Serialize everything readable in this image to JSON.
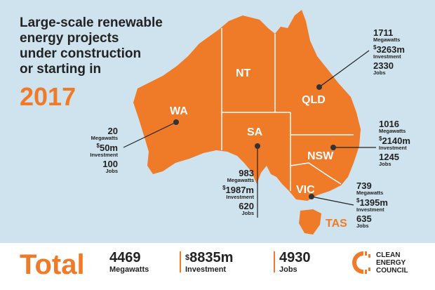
{
  "chart_data": {
    "type": "map",
    "title_lines": [
      "Large-scale renewable",
      "energy projects",
      "under construction",
      "or starting in"
    ],
    "year": "2017",
    "states": [
      {
        "code": "WA",
        "megawatts": "20",
        "investment": "50m",
        "jobs": "100"
      },
      {
        "code": "NT"
      },
      {
        "code": "SA",
        "megawatts": "983",
        "investment": "1987m",
        "jobs": "620"
      },
      {
        "code": "QLD",
        "megawatts": "1711",
        "investment": "3263m",
        "jobs": "2330"
      },
      {
        "code": "NSW",
        "megawatts": "1016",
        "investment": "2140m",
        "jobs": "1245"
      },
      {
        "code": "VIC",
        "megawatts": "739",
        "investment": "1395m",
        "jobs": "635"
      },
      {
        "code": "TAS"
      }
    ],
    "units": {
      "megawatts": "Megawatts",
      "investment": "Investment",
      "jobs": "Jobs",
      "dollar": "$"
    },
    "total": {
      "label": "Total",
      "megawatts": "4469",
      "investment": "8835m",
      "jobs": "4930"
    }
  },
  "logo": {
    "line1": "CLEAN",
    "line2": "ENERGY",
    "line3": "COUNCIL"
  },
  "colors": {
    "orange": "#ef7a28",
    "sea": "#cfe3ee",
    "text": "#222222"
  }
}
